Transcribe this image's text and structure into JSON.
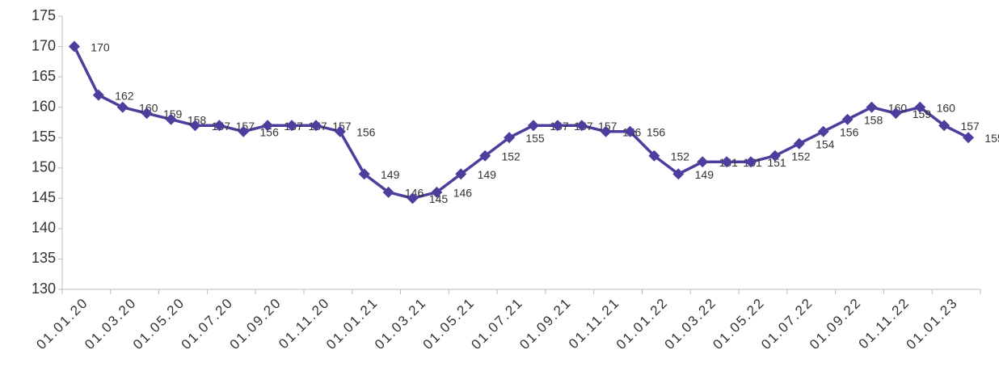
{
  "chart_data": {
    "type": "line",
    "categories": [
      "01.01.20",
      null,
      "01.03.20",
      null,
      "01.05.20",
      null,
      "01.07.20",
      null,
      "01.09.20",
      null,
      "01.11.20",
      null,
      "01.01.21",
      null,
      "01.03.21",
      null,
      "01.05.21",
      null,
      "01.07.21",
      null,
      "01.09.21",
      null,
      "01.11.21",
      null,
      "01.01.22",
      null,
      "01.03.22",
      null,
      "01.05.22",
      null,
      "01.07.22",
      null,
      "01.09.22",
      null,
      "01.11.22",
      null,
      "01.01.23",
      null
    ],
    "series": [
      {
        "name": null,
        "color": "#4f3d9e",
        "values": [
          170,
          162,
          160,
          159,
          158,
          157,
          157,
          156,
          157,
          157,
          157,
          156,
          149,
          146,
          145,
          146,
          149,
          152,
          155,
          157,
          157,
          157,
          156,
          156,
          152,
          149,
          151,
          151,
          151,
          152,
          154,
          156,
          158,
          160,
          159,
          160,
          157,
          155
        ]
      }
    ],
    "ylim": [
      130,
      175
    ],
    "yticks": [
      130,
      135,
      140,
      145,
      150,
      155,
      160,
      165,
      170,
      175
    ],
    "grid": false
  }
}
